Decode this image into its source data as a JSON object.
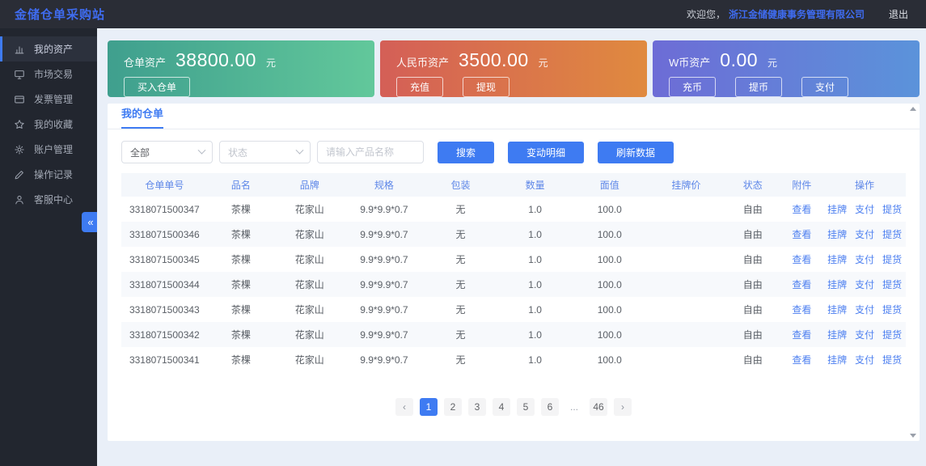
{
  "colors": {
    "accent": "#3e7bf2",
    "topbar_bg": "#2a2d36",
    "sidebar_bg": "#22262f",
    "page_bg": "#e9eff8"
  },
  "header": {
    "title": "金储仓单采购站",
    "welcome_prefix": "欢迎您，",
    "company": "浙江金储健康事务管理有限公司",
    "logout": "退出"
  },
  "sidebar": {
    "items": [
      {
        "id": "my-assets",
        "label": "我的资产",
        "icon": "assets-chart-icon",
        "active": true
      },
      {
        "id": "market-trade",
        "label": "市场交易",
        "icon": "market-monitor-icon",
        "active": false
      },
      {
        "id": "invoice-manage",
        "label": "发票管理",
        "icon": "invoice-icon",
        "active": false
      },
      {
        "id": "my-favorites",
        "label": "我的收藏",
        "icon": "star-icon",
        "active": false
      },
      {
        "id": "account-manage",
        "label": "账户管理",
        "icon": "gear-icon",
        "active": false
      },
      {
        "id": "operation-log",
        "label": "操作记录",
        "icon": "pencil-icon",
        "active": false
      },
      {
        "id": "customer-service",
        "label": "客服中心",
        "icon": "user-icon",
        "active": false
      }
    ],
    "collapse_icon": "«"
  },
  "cards": [
    {
      "id": "warehouse-receipt-assets",
      "label": "仓单资产",
      "value": "38800.00",
      "unit": "元",
      "gradient": [
        "#3f9f8e",
        "#62c89b"
      ],
      "buttons": [
        {
          "id": "buy-receipt",
          "label": "买入仓单"
        }
      ]
    },
    {
      "id": "rmb-assets",
      "label": "人民币资产",
      "value": "3500.00",
      "unit": "元",
      "gradient": [
        "#d45f57",
        "#e08a3f"
      ],
      "buttons": [
        {
          "id": "recharge",
          "label": "充值"
        },
        {
          "id": "withdraw",
          "label": "提现"
        }
      ]
    },
    {
      "id": "w-coin-assets",
      "label": "W币资产",
      "value": "0.00",
      "unit": "元",
      "gradient": [
        "#6d6cd6",
        "#5b93da"
      ],
      "buttons": [
        {
          "id": "deposit-coin",
          "label": "充币"
        },
        {
          "id": "withdraw-coin",
          "label": "提币"
        },
        {
          "id": "pay",
          "label": "支付"
        }
      ]
    }
  ],
  "panel": {
    "tab": "我的仓单",
    "filters": {
      "category_value": "全部",
      "status_placeholder": "状态",
      "search_placeholder": "请输入产品名称",
      "buttons": [
        {
          "id": "search",
          "label": "搜索"
        },
        {
          "id": "change-detail",
          "label": "变动明细"
        },
        {
          "id": "refresh-data",
          "label": "刷新数据"
        }
      ]
    },
    "table": {
      "headers": [
        "仓单单号",
        "品名",
        "品牌",
        "规格",
        "包装",
        "数量",
        "面值",
        "挂牌价",
        "状态",
        "附件",
        "操作"
      ],
      "attachment_label": "查看",
      "action_labels": [
        {
          "id": "list",
          "label": "挂牌"
        },
        {
          "id": "pay",
          "label": "支付"
        },
        {
          "id": "pickup",
          "label": "提货"
        }
      ],
      "rows": [
        {
          "no": "3318071500347",
          "name": "茶棵",
          "brand": "花家山",
          "spec": "9.9*9.9*0.7",
          "pack": "无",
          "qty": "1.0",
          "value": "100.0",
          "listed_price": "",
          "status": "自由"
        },
        {
          "no": "3318071500346",
          "name": "茶棵",
          "brand": "花家山",
          "spec": "9.9*9.9*0.7",
          "pack": "无",
          "qty": "1.0",
          "value": "100.0",
          "listed_price": "",
          "status": "自由"
        },
        {
          "no": "3318071500345",
          "name": "茶棵",
          "brand": "花家山",
          "spec": "9.9*9.9*0.7",
          "pack": "无",
          "qty": "1.0",
          "value": "100.0",
          "listed_price": "",
          "status": "自由"
        },
        {
          "no": "3318071500344",
          "name": "茶棵",
          "brand": "花家山",
          "spec": "9.9*9.9*0.7",
          "pack": "无",
          "qty": "1.0",
          "value": "100.0",
          "listed_price": "",
          "status": "自由"
        },
        {
          "no": "3318071500343",
          "name": "茶棵",
          "brand": "花家山",
          "spec": "9.9*9.9*0.7",
          "pack": "无",
          "qty": "1.0",
          "value": "100.0",
          "listed_price": "",
          "status": "自由"
        },
        {
          "no": "3318071500342",
          "name": "茶棵",
          "brand": "花家山",
          "spec": "9.9*9.9*0.7",
          "pack": "无",
          "qty": "1.0",
          "value": "100.0",
          "listed_price": "",
          "status": "自由"
        },
        {
          "no": "3318071500341",
          "name": "茶棵",
          "brand": "花家山",
          "spec": "9.9*9.9*0.7",
          "pack": "无",
          "qty": "1.0",
          "value": "100.0",
          "listed_price": "",
          "status": "自由"
        }
      ]
    },
    "pagination": {
      "prev_label": "‹",
      "next_label": "›",
      "pages": [
        "1",
        "2",
        "3",
        "4",
        "5",
        "6",
        "...",
        "46"
      ],
      "active_page": "1"
    }
  }
}
